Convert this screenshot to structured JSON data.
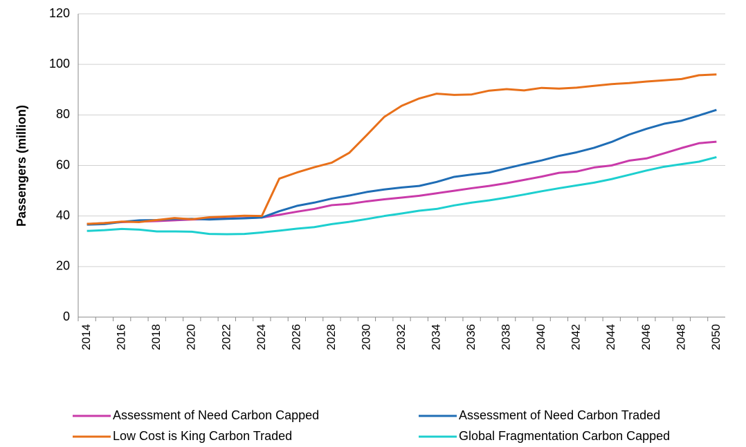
{
  "chart_data": {
    "type": "line",
    "y_label": "Passengers (million)",
    "categories": [
      "2014",
      null,
      "2016",
      null,
      "2018",
      null,
      "2020",
      null,
      "2022",
      null,
      "2024",
      null,
      "2026",
      null,
      "2028",
      null,
      "2030",
      null,
      "2032",
      null,
      "2034",
      null,
      "2036",
      null,
      "2038",
      null,
      "2040",
      null,
      "2042",
      null,
      "2044",
      null,
      "2046",
      null,
      "2048",
      null,
      "2050"
    ],
    "ylim": [
      0,
      120
    ],
    "yticks": [
      0,
      20,
      40,
      60,
      80,
      100,
      120
    ],
    "grid": true,
    "series": [
      {
        "name": "Assessment of Need Carbon Capped",
        "color": "#c93aa9",
        "values": [
          36.8,
          37.2,
          37.6,
          37.8,
          38.0,
          38.3,
          38.6,
          38.8,
          39.0,
          39.2,
          39.4,
          40.5,
          41.7,
          42.8,
          44.3,
          44.8,
          45.8,
          46.6,
          47.3,
          48.0,
          49.0,
          50.0,
          51.0,
          51.9,
          53.0,
          54.3,
          55.6,
          57.1,
          57.6,
          59.2,
          60.0,
          61.9,
          62.8,
          64.8,
          66.9,
          68.8,
          69.4
        ]
      },
      {
        "name": "Assessment of Need Carbon Traded",
        "color": "#1f6db5",
        "values": [
          36.6,
          36.8,
          37.7,
          38.3,
          38.4,
          38.8,
          38.9,
          38.6,
          38.9,
          39.1,
          39.4,
          41.9,
          44.0,
          45.3,
          46.9,
          48.1,
          49.5,
          50.5,
          51.3,
          51.9,
          53.5,
          55.5,
          56.4,
          57.2,
          58.9,
          60.5,
          62.0,
          63.8,
          65.2,
          67.0,
          69.3,
          72.2,
          74.5,
          76.5,
          77.7,
          79.8,
          82.0
        ]
      },
      {
        "name": "Low Cost is King Carbon Traded",
        "color": "#e8701a",
        "values": [
          36.9,
          37.2,
          37.8,
          37.6,
          38.4,
          39.2,
          38.7,
          39.5,
          39.8,
          40.1,
          40.0,
          54.8,
          57.2,
          59.3,
          61.1,
          65.0,
          72.0,
          79.2,
          83.6,
          86.5,
          88.4,
          87.9,
          88.1,
          89.6,
          90.2,
          89.7,
          90.7,
          90.4,
          90.8,
          91.5,
          92.2,
          92.6,
          93.2,
          93.7,
          94.2,
          95.7,
          96.0
        ]
      },
      {
        "name": "Global Fragmentation Carbon Capped",
        "color": "#1dcfcf",
        "values": [
          34.1,
          34.4,
          34.9,
          34.6,
          33.9,
          33.9,
          33.8,
          32.9,
          32.8,
          32.9,
          33.5,
          34.2,
          35.0,
          35.6,
          36.8,
          37.7,
          38.8,
          40.0,
          41.0,
          42.1,
          42.8,
          44.2,
          45.3,
          46.2,
          47.3,
          48.5,
          49.8,
          51.0,
          52.1,
          53.2,
          54.6,
          56.3,
          58.0,
          59.5,
          60.5,
          61.5,
          63.3
        ]
      }
    ]
  }
}
